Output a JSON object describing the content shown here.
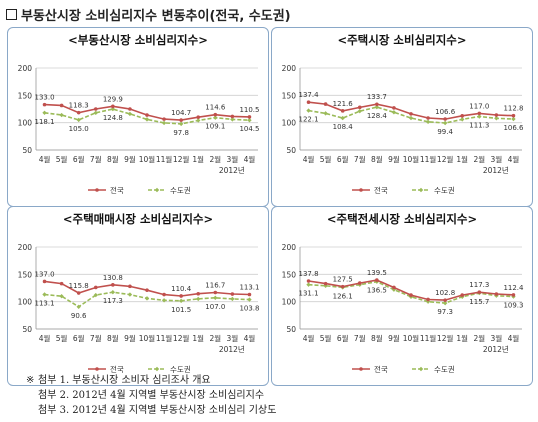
{
  "heading": {
    "checkbox_icon": "empty-square",
    "title": "부동산시장 소비심리지수 변동추이(전국, 수도권)"
  },
  "colors": {
    "national": "#c0504d",
    "capital": "#9bbb59",
    "frame": "#8aa8c8",
    "grid": "#cfcfcf"
  },
  "chart_data": [
    {
      "type": "line",
      "title": "<부동산시장 소비심리지수>",
      "categories": [
        "4월",
        "5월",
        "6월",
        "7월",
        "8월",
        "9월",
        "10월",
        "11월",
        "12월",
        "1월",
        "2월",
        "3월",
        "4월"
      ],
      "year_label": "2012년",
      "y_ticks": [
        "200",
        "150",
        "100",
        "50"
      ],
      "ylim": [
        50,
        200
      ],
      "legend": [
        "전국",
        "수도권"
      ],
      "series": [
        {
          "name": "전국",
          "values": [
            133.0,
            131.5,
            118.3,
            125.0,
            129.9,
            125.0,
            114.0,
            106.5,
            104.7,
            110.0,
            114.6,
            111.5,
            110.5
          ],
          "labels": [
            {
              "i": 0,
              "text": "133.0"
            },
            {
              "i": 2,
              "text": "118.3"
            },
            {
              "i": 4,
              "text": "129.9"
            },
            {
              "i": 8,
              "text": "104.7"
            },
            {
              "i": 10,
              "text": "114.6"
            },
            {
              "i": 12,
              "text": "110.5"
            }
          ]
        },
        {
          "name": "수도권",
          "values": [
            118.1,
            114.0,
            105.0,
            118.0,
            124.8,
            116.0,
            106.0,
            99.5,
            97.8,
            104.0,
            109.1,
            106.0,
            104.5
          ],
          "labels": [
            {
              "i": 0,
              "text": "118.1"
            },
            {
              "i": 2,
              "text": "105.0"
            },
            {
              "i": 4,
              "text": "124.8"
            },
            {
              "i": 8,
              "text": "97.8"
            },
            {
              "i": 10,
              "text": "109.1"
            },
            {
              "i": 12,
              "text": "104.5"
            }
          ]
        }
      ]
    },
    {
      "type": "line",
      "title": "<주택시장 소비심리지수>",
      "categories": [
        "4월",
        "5월",
        "6월",
        "7월",
        "8월",
        "9월",
        "10월",
        "11월",
        "12월",
        "1월",
        "2월",
        "3월",
        "4월"
      ],
      "year_label": "2012년",
      "y_ticks": [
        "200",
        "150",
        "100",
        "50"
      ],
      "ylim": [
        50,
        200
      ],
      "legend": [
        "전국",
        "수도권"
      ],
      "series": [
        {
          "name": "전국",
          "values": [
            137.4,
            134.0,
            121.6,
            128.0,
            133.7,
            127.0,
            116.0,
            108.5,
            106.6,
            112.5,
            117.0,
            114.0,
            112.8
          ],
          "labels": [
            {
              "i": 0,
              "text": "137.4"
            },
            {
              "i": 2,
              "text": "121.6"
            },
            {
              "i": 4,
              "text": "133.7"
            },
            {
              "i": 8,
              "text": "106.6"
            },
            {
              "i": 10,
              "text": "117.0"
            },
            {
              "i": 12,
              "text": "112.8"
            }
          ]
        },
        {
          "name": "수도권",
          "values": [
            122.1,
            117.0,
            108.4,
            121.0,
            128.4,
            119.0,
            108.5,
            101.5,
            99.4,
            106.0,
            111.3,
            108.0,
            106.6
          ],
          "labels": [
            {
              "i": 0,
              "text": "122.1"
            },
            {
              "i": 2,
              "text": "108.4"
            },
            {
              "i": 4,
              "text": "128.4"
            },
            {
              "i": 8,
              "text": "99.4"
            },
            {
              "i": 10,
              "text": "111.3"
            },
            {
              "i": 12,
              "text": "106.6"
            }
          ]
        }
      ]
    },
    {
      "type": "line",
      "title": "<주택매매시장 소비심리지수>",
      "categories": [
        "4월",
        "5월",
        "6월",
        "7월",
        "8월",
        "9월",
        "10월",
        "11월",
        "12월",
        "1월",
        "2월",
        "3월",
        "4월"
      ],
      "year_label": "2012년",
      "y_ticks": [
        "200",
        "150",
        "100",
        "50"
      ],
      "ylim": [
        50,
        200
      ],
      "legend": [
        "전국",
        "수도권"
      ],
      "series": [
        {
          "name": "전국",
          "values": [
            137.0,
            133.0,
            115.8,
            126.0,
            130.8,
            128.0,
            121.0,
            113.0,
            110.4,
            114.5,
            116.7,
            114.0,
            113.1
          ],
          "labels": [
            {
              "i": 0,
              "text": "137.0"
            },
            {
              "i": 2,
              "text": "115.8"
            },
            {
              "i": 4,
              "text": "130.8"
            },
            {
              "i": 8,
              "text": "110.4"
            },
            {
              "i": 10,
              "text": "116.7"
            },
            {
              "i": 12,
              "text": "113.1"
            }
          ]
        },
        {
          "name": "수도권",
          "values": [
            113.1,
            110.0,
            90.6,
            112.0,
            117.3,
            113.0,
            106.0,
            102.5,
            101.5,
            105.0,
            107.0,
            105.0,
            103.8
          ],
          "labels": [
            {
              "i": 0,
              "text": "113.1"
            },
            {
              "i": 2,
              "text": "90.6"
            },
            {
              "i": 4,
              "text": "117.3"
            },
            {
              "i": 8,
              "text": "101.5"
            },
            {
              "i": 10,
              "text": "107.0"
            },
            {
              "i": 12,
              "text": "103.8"
            }
          ]
        }
      ]
    },
    {
      "type": "line",
      "title": "<주택전세시장 소비심리지수>",
      "categories": [
        "4월",
        "5월",
        "6월",
        "7월",
        "8월",
        "9월",
        "10월",
        "11월",
        "12월",
        "1월",
        "2월",
        "3월",
        "4월"
      ],
      "year_label": "2012년",
      "y_ticks": [
        "200",
        "150",
        "100",
        "50"
      ],
      "ylim": [
        50,
        200
      ],
      "legend": [
        "전국",
        "수도권"
      ],
      "series": [
        {
          "name": "전국",
          "values": [
            137.8,
            133.0,
            127.5,
            134.0,
            139.5,
            126.0,
            112.0,
            104.0,
            102.8,
            112.0,
            117.3,
            114.0,
            112.4
          ],
          "labels": [
            {
              "i": 0,
              "text": "137.8"
            },
            {
              "i": 2,
              "text": "127.5"
            },
            {
              "i": 4,
              "text": "139.5"
            },
            {
              "i": 8,
              "text": "102.8"
            },
            {
              "i": 10,
              "text": "117.3"
            },
            {
              "i": 12,
              "text": "112.4"
            }
          ]
        },
        {
          "name": "수도권",
          "values": [
            131.1,
            129.0,
            126.1,
            131.0,
            136.5,
            122.0,
            109.0,
            100.0,
            97.3,
            109.0,
            115.7,
            111.0,
            109.3
          ],
          "labels": [
            {
              "i": 0,
              "text": "131.1"
            },
            {
              "i": 2,
              "text": "126.1"
            },
            {
              "i": 4,
              "text": "136.5"
            },
            {
              "i": 8,
              "text": "97.3"
            },
            {
              "i": 10,
              "text": "115.7"
            },
            {
              "i": 12,
              "text": "109.3"
            }
          ]
        }
      ]
    }
  ],
  "footnotes": {
    "mark": "※",
    "lines": [
      "첨부 1. 부동산시장 소비자 심리조사 개요",
      "첨부 2. 2012년 4월 지역별 부동산시장 소비심리지수",
      "첨부 3. 2012년 4월 지역별 부동산시장 소비심리 기상도"
    ]
  }
}
